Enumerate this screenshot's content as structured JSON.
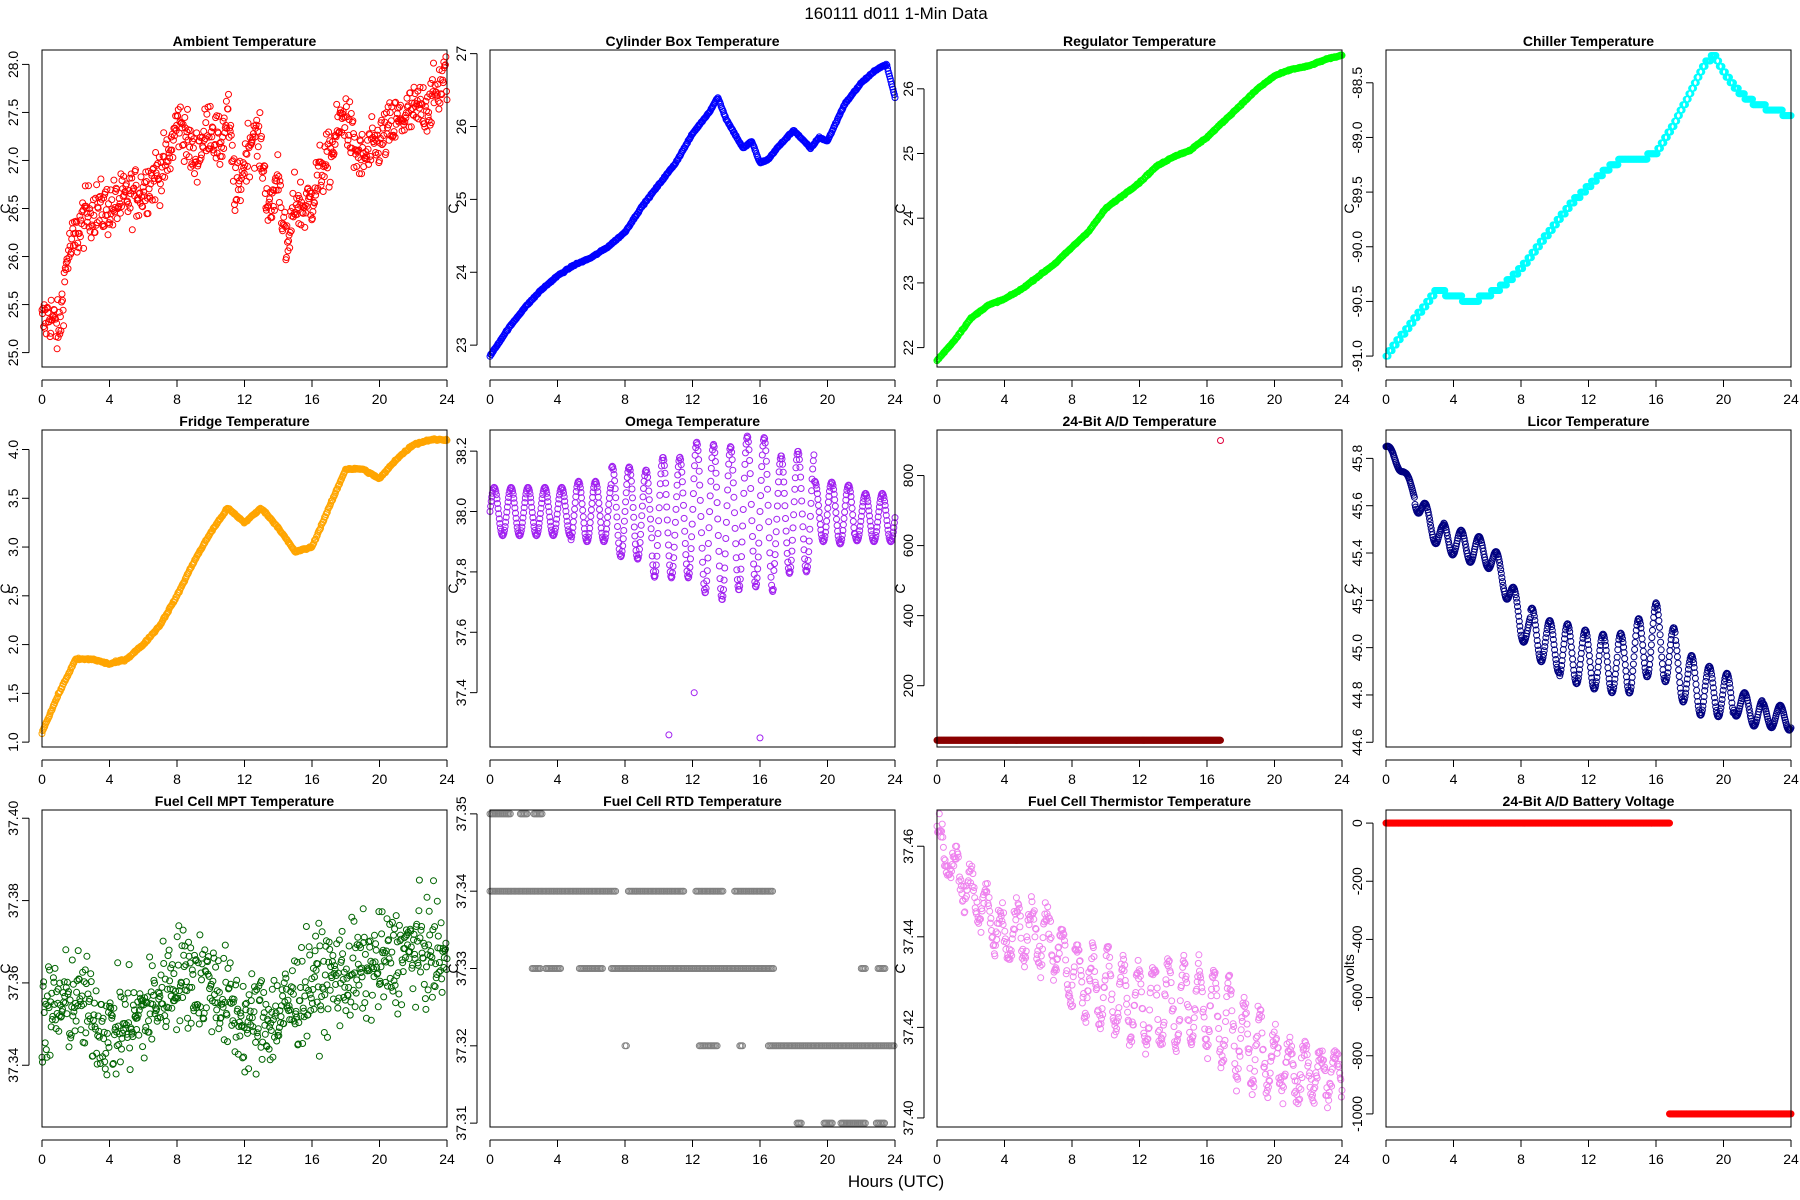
{
  "title": "160111    d011    1-Min Data",
  "xlabel": "Hours (UTC)",
  "chart_data": [
    {
      "type": "scatter",
      "title": "Ambient Temperature",
      "ylabel": "C",
      "color": "#ff0000",
      "xlim": [
        0,
        24
      ],
      "ylim": [
        24.85,
        28.15
      ],
      "xticks": [
        0,
        4,
        8,
        12,
        16,
        20,
        24
      ],
      "yticks": [
        25.0,
        25.5,
        26.0,
        26.5,
        27.0,
        27.5,
        28.0
      ],
      "ytick_labels": [
        "25.0",
        "25.5",
        "26.0",
        "26.5",
        "27.0",
        "27.5",
        "28.0"
      ],
      "x": [
        0,
        0.5,
        1,
        1.5,
        2,
        2.5,
        3,
        4,
        5,
        6,
        7,
        7.5,
        8,
        8.5,
        9,
        9.5,
        10,
        10.5,
        11,
        11.5,
        12,
        12.5,
        13,
        13.5,
        14,
        14.5,
        15,
        15.5,
        16,
        16.5,
        17,
        17.5,
        18,
        18.5,
        19,
        20,
        21,
        22,
        23,
        24
      ],
      "y": [
        25.3,
        25.4,
        25.2,
        26.0,
        26.2,
        26.4,
        26.5,
        26.5,
        26.6,
        26.7,
        26.9,
        27.0,
        27.4,
        27.3,
        27.0,
        27.2,
        27.4,
        27.1,
        27.5,
        26.6,
        27.0,
        27.3,
        27.1,
        26.4,
        26.9,
        26.0,
        26.6,
        26.5,
        26.6,
        26.9,
        27.0,
        27.3,
        27.5,
        27.1,
        27.0,
        27.2,
        27.4,
        27.5,
        27.6,
        27.9
      ],
      "noise": 0.28
    },
    {
      "type": "scatter",
      "title": "Cylinder Box Temperature",
      "ylabel": "C",
      "color": "#0000ff",
      "xlim": [
        0,
        24
      ],
      "ylim": [
        22.7,
        27.05
      ],
      "xticks": [
        0,
        4,
        8,
        12,
        16,
        20,
        24
      ],
      "yticks": [
        23,
        24,
        25,
        26,
        27
      ],
      "ytick_labels": [
        "23",
        "24",
        "25",
        "26",
        "27"
      ],
      "x": [
        0,
        1,
        2,
        3,
        4,
        5,
        6,
        7,
        8,
        9,
        10,
        11,
        12,
        13,
        13.5,
        14,
        15,
        15.5,
        16,
        16.5,
        17,
        18,
        19,
        19.5,
        20,
        21,
        22,
        23,
        23.5,
        24
      ],
      "y": [
        22.85,
        23.2,
        23.5,
        23.75,
        23.95,
        24.1,
        24.2,
        24.35,
        24.55,
        24.9,
        25.2,
        25.5,
        25.9,
        26.2,
        26.4,
        26.1,
        25.7,
        25.8,
        25.5,
        25.55,
        25.7,
        25.95,
        25.7,
        25.85,
        25.8,
        26.3,
        26.6,
        26.8,
        26.85,
        26.4
      ],
      "noise": 0.01
    },
    {
      "type": "scatter",
      "title": "Regulator Temperature",
      "ylabel": "C",
      "color": "#00ff00",
      "xlim": [
        0,
        24
      ],
      "ylim": [
        21.7,
        26.6
      ],
      "xticks": [
        0,
        4,
        8,
        12,
        16,
        20,
        24
      ],
      "yticks": [
        22,
        23,
        24,
        25,
        26
      ],
      "ytick_labels": [
        "22",
        "23",
        "24",
        "25",
        "26"
      ],
      "x": [
        0,
        1,
        2,
        3,
        4,
        5,
        6,
        7,
        8,
        9,
        10,
        11,
        12,
        13,
        14,
        14.5,
        15,
        16,
        17,
        18,
        19,
        20,
        21,
        22,
        23,
        24
      ],
      "y": [
        21.8,
        22.1,
        22.45,
        22.65,
        22.75,
        22.9,
        23.1,
        23.3,
        23.55,
        23.8,
        24.15,
        24.35,
        24.55,
        24.8,
        24.95,
        25.0,
        25.05,
        25.25,
        25.5,
        25.75,
        26.0,
        26.2,
        26.3,
        26.35,
        26.45,
        26.52
      ],
      "noise": 0.01
    },
    {
      "type": "scatter",
      "title": "Chiller Temperature",
      "ylabel": "C",
      "color": "#00ffff",
      "xlim": [
        0,
        24
      ],
      "ylim": [
        -91.1,
        -88.2
      ],
      "xticks": [
        0,
        4,
        8,
        12,
        16,
        20,
        24
      ],
      "yticks": [
        -91.0,
        -90.5,
        -90.0,
        -89.5,
        -89.0,
        -88.5
      ],
      "ytick_labels": [
        "-91.0",
        "-90.5",
        "-90.0",
        "-89.5",
        "-89.0",
        "-88.5"
      ],
      "x": [
        0,
        1,
        2,
        3,
        4,
        5,
        6,
        7,
        8,
        9,
        10,
        11,
        12,
        13,
        14,
        15,
        16,
        17,
        18,
        19,
        19.5,
        20,
        21,
        22,
        23,
        24
      ],
      "y": [
        -91.0,
        -90.8,
        -90.6,
        -90.4,
        -90.45,
        -90.5,
        -90.45,
        -90.35,
        -90.2,
        -90.0,
        -89.8,
        -89.6,
        -89.45,
        -89.3,
        -89.2,
        -89.2,
        -89.15,
        -88.9,
        -88.6,
        -88.3,
        -88.25,
        -88.4,
        -88.6,
        -88.7,
        -88.75,
        -88.8
      ],
      "noise": 0.0,
      "quantize": 0.05
    },
    {
      "type": "scatter",
      "title": "Fridge Temperature",
      "ylabel": "C",
      "color": "#ffa500",
      "xlim": [
        0,
        24
      ],
      "ylim": [
        0.95,
        4.2
      ],
      "xticks": [
        0,
        4,
        8,
        12,
        16,
        20,
        24
      ],
      "yticks": [
        1.0,
        1.5,
        2.0,
        2.5,
        3.0,
        3.5,
        4.0
      ],
      "ytick_labels": [
        "1.0",
        "1.5",
        "2.0",
        "2.5",
        "3.0",
        "3.5",
        "4.0"
      ],
      "x": [
        0,
        1,
        2,
        3,
        4,
        5,
        6,
        7,
        8,
        9,
        10,
        11,
        12,
        13,
        14,
        15,
        16,
        17,
        18,
        19,
        20,
        21,
        22,
        23,
        24
      ],
      "y": [
        1.1,
        1.5,
        1.85,
        1.85,
        1.8,
        1.85,
        2.0,
        2.2,
        2.5,
        2.85,
        3.15,
        3.4,
        3.25,
        3.4,
        3.2,
        2.95,
        3.0,
        3.4,
        3.8,
        3.8,
        3.7,
        3.9,
        4.05,
        4.1,
        4.1
      ],
      "noise": 0.01
    },
    {
      "type": "scatter",
      "title": "Omega Temperature",
      "ylabel": "C",
      "color": "#a020f0",
      "xlim": [
        0,
        24
      ],
      "ylim": [
        37.22,
        38.27
      ],
      "xticks": [
        0,
        4,
        8,
        12,
        16,
        20,
        24
      ],
      "yticks": [
        37.4,
        37.6,
        37.8,
        38.0,
        38.2
      ],
      "ytick_labels": [
        "37.4",
        "37.6",
        "37.8",
        "38.0",
        "38.2"
      ],
      "x": [
        0,
        4,
        8,
        10,
        12,
        13,
        14,
        14.5,
        15,
        16,
        17,
        18,
        20,
        22,
        24
      ],
      "y": [
        38.0,
        38.0,
        38.0,
        37.98,
        37.98,
        37.98,
        37.95,
        37.98,
        38.0,
        38.0,
        37.98,
        38.0,
        38.0,
        37.98,
        37.98
      ],
      "osc": {
        "period": 1.0,
        "amp": [
          0.08,
          0.08,
          0.1,
          0.15,
          0.2,
          0.25,
          0.25,
          0.2,
          0.1,
          0.08
        ]
      },
      "outliers": [
        [
          10.6,
          37.26
        ],
        [
          12.1,
          37.4
        ],
        [
          16.0,
          37.25
        ]
      ]
    },
    {
      "type": "scatter",
      "title": "24-Bit A/D Temperature",
      "ylabel": "C",
      "color": "#8b0000",
      "xlim": [
        0,
        24
      ],
      "ylim": [
        25,
        930
      ],
      "xticks": [
        0,
        4,
        8,
        12,
        16,
        20,
        24
      ],
      "yticks": [
        200,
        400,
        600,
        800
      ],
      "ytick_labels": [
        "200",
        "400",
        "600",
        "800"
      ],
      "x": [
        0,
        16.8
      ],
      "y": [
        44,
        44
      ],
      "noise": 0.0,
      "outliers": [
        [
          16.8,
          900
        ]
      ],
      "outlier_color": "#e0003c"
    },
    {
      "type": "scatter",
      "title": "Licor Temperature",
      "ylabel": "C",
      "color": "#000080",
      "xlim": [
        0,
        24
      ],
      "ylim": [
        44.58,
        45.92
      ],
      "xticks": [
        0,
        4,
        8,
        12,
        16,
        20,
        24
      ],
      "yticks": [
        44.6,
        44.8,
        45.0,
        45.2,
        45.4,
        45.6,
        45.8
      ],
      "ytick_labels": [
        "44.6",
        "44.8",
        "45.0",
        "45.2",
        "45.4",
        "45.6",
        "45.8"
      ],
      "x": [
        0,
        1,
        2,
        3,
        4,
        5,
        6,
        7,
        8,
        10,
        12,
        14,
        16,
        18,
        20,
        22,
        24
      ],
      "y": [
        45.85,
        45.75,
        45.6,
        45.48,
        45.45,
        45.42,
        45.4,
        45.3,
        45.1,
        45.0,
        44.95,
        44.92,
        45.05,
        44.85,
        44.8,
        44.72,
        44.7
      ],
      "osc": {
        "period": 1.05,
        "amp": [
          0.02,
          0.05,
          0.06,
          0.06,
          0.07,
          0.1,
          0.12,
          0.12,
          0.14,
          0.14,
          0.12,
          0.1,
          0.06,
          0.05
        ]
      }
    },
    {
      "type": "scatter",
      "title": "Fuel Cell MPT Temperature",
      "ylabel": "C",
      "color": "#006400",
      "xlim": [
        0,
        24
      ],
      "ylim": [
        37.325,
        37.402
      ],
      "xticks": [
        0,
        4,
        8,
        12,
        16,
        20,
        24
      ],
      "yticks": [
        37.34,
        37.36,
        37.38,
        37.4
      ],
      "ytick_labels": [
        "37.34",
        "37.36",
        "37.38",
        "37.40"
      ],
      "x": [
        0,
        2,
        4,
        6,
        8,
        10,
        12,
        14,
        16,
        18,
        20,
        22,
        24
      ],
      "y": [
        37.352,
        37.356,
        37.348,
        37.352,
        37.362,
        37.36,
        37.35,
        37.352,
        37.36,
        37.362,
        37.364,
        37.368,
        37.366
      ],
      "noise": 0.012
    },
    {
      "type": "scatter",
      "title": "Fuel Cell RTD Temperature",
      "ylabel": "C",
      "color": "#808080",
      "xlim": [
        0,
        24
      ],
      "ylim": [
        37.3095,
        37.3505
      ],
      "xticks": [
        0,
        4,
        8,
        12,
        16,
        20,
        24
      ],
      "yticks": [
        37.31,
        37.32,
        37.33,
        37.34,
        37.35
      ],
      "ytick_labels": [
        "37.31",
        "37.32",
        "37.33",
        "37.34",
        "37.35"
      ],
      "levels": [
        {
          "y": 37.35,
          "ranges": [
            [
              0,
              1.2
            ],
            [
              1.8,
              2.2
            ],
            [
              2.6,
              3.1
            ]
          ]
        },
        {
          "y": 37.34,
          "ranges": [
            [
              0,
              7.5
            ],
            [
              8.2,
              11.5
            ],
            [
              12.2,
              13.8
            ],
            [
              14.5,
              16.8
            ]
          ]
        },
        {
          "y": 37.33,
          "ranges": [
            [
              2.5,
              3.0
            ],
            [
              3.3,
              4.2
            ],
            [
              5.3,
              6.7
            ],
            [
              7.2,
              16.8
            ],
            [
              22.0,
              22.3
            ],
            [
              23.0,
              23.4
            ]
          ]
        },
        {
          "y": 37.32,
          "ranges": [
            [
              8.0,
              8.1
            ],
            [
              12.4,
              12.8
            ],
            [
              12.9,
              13.5
            ],
            [
              14.8,
              15.0
            ],
            [
              16.5,
              24.0
            ]
          ]
        },
        {
          "y": 37.31,
          "ranges": [
            [
              18.2,
              18.5
            ],
            [
              19.8,
              20.3
            ],
            [
              20.8,
              22.3
            ],
            [
              22.9,
              23.4
            ]
          ]
        }
      ]
    },
    {
      "type": "scatter",
      "title": "Fuel Cell Thermistor Temperature",
      "ylabel": "C",
      "color": "#ee82ee",
      "xlim": [
        0,
        24
      ],
      "ylim": [
        37.398,
        37.468
      ],
      "xticks": [
        0,
        4,
        8,
        12,
        16,
        20,
        24
      ],
      "yticks": [
        37.4,
        37.42,
        37.44,
        37.46
      ],
      "ytick_labels": [
        "37.40",
        "37.42",
        "37.44",
        "37.46"
      ],
      "x": [
        0,
        1,
        2,
        3,
        4,
        5,
        6,
        7,
        8,
        10,
        12,
        14,
        16,
        18,
        20,
        22,
        24
      ],
      "y": [
        37.462,
        37.455,
        37.45,
        37.445,
        37.44,
        37.442,
        37.44,
        37.438,
        37.432,
        37.428,
        37.425,
        37.425,
        37.425,
        37.418,
        37.412,
        37.41,
        37.41
      ],
      "osc": {
        "period": 0.9,
        "amp": [
          0.004,
          0.005,
          0.006,
          0.006,
          0.007,
          0.008,
          0.009,
          0.009,
          0.01,
          0.008,
          0.006,
          0.005
        ]
      },
      "noise": 0.003
    },
    {
      "type": "scatter",
      "title": "24-Bit A/D Battery Voltage",
      "ylabel": "volts",
      "color": "#ff0000",
      "xlim": [
        0,
        24
      ],
      "ylim": [
        -1045,
        45
      ],
      "xticks": [
        0,
        4,
        8,
        12,
        16,
        20,
        24
      ],
      "yticks": [
        0,
        -200,
        -400,
        -600,
        -800,
        -1000
      ],
      "ytick_labels": [
        "0",
        "-200",
        "-400",
        "-600",
        "-800",
        "-1000"
      ],
      "segments": [
        [
          0,
          16.8,
          0
        ],
        [
          16.8,
          24,
          -1000
        ]
      ]
    }
  ]
}
